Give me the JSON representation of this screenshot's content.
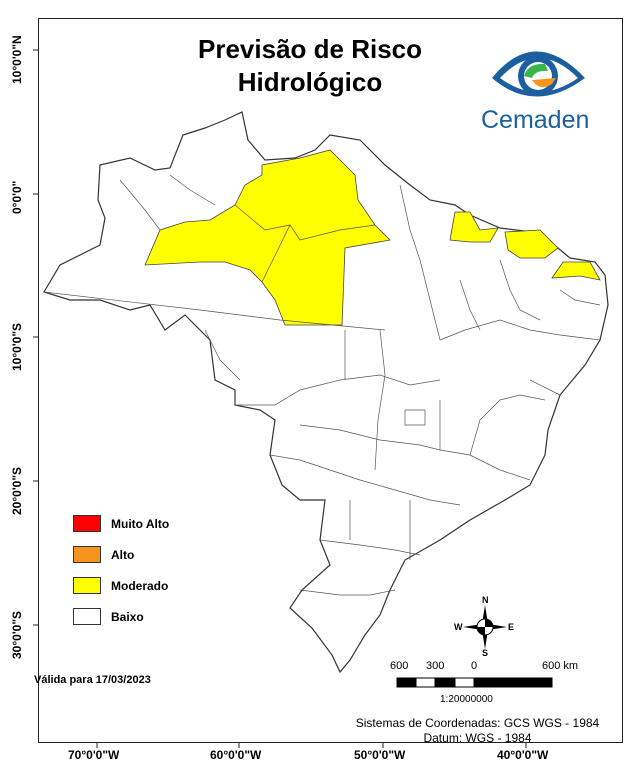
{
  "title_line1": "Previsão de Risco",
  "title_line2": "Hidrológico",
  "logo_text": "Cemaden",
  "legend": [
    {
      "label": "Muito Alto",
      "color": "#ff0000"
    },
    {
      "label": "Alto",
      "color": "#f7941d"
    },
    {
      "label": "Moderado",
      "color": "#ffff00"
    },
    {
      "label": "Baixo",
      "color": "#ffffff"
    }
  ],
  "valid_text": "Válida para 17/03/2023",
  "compass": {
    "n": "N",
    "s": "S",
    "e": "E",
    "w": "W"
  },
  "scale": {
    "labels": [
      "600",
      "300",
      "0",
      "600 km"
    ],
    "ratio": "1:20000000"
  },
  "coords_line1": "Sistemas de Coordenadas: GCS WGS - 1984",
  "coords_line2": "Datum: WGS - 1984",
  "axis_x": [
    "70°0'0\"W",
    "60°0'0\"W",
    "50°0'0\"W",
    "40°0'0\"W"
  ],
  "axis_y": [
    "10°0'0\"N",
    "0°0'0\"",
    "10°0'0\"S",
    "20°0'0\"S",
    "30°0'0\"S"
  ]
}
